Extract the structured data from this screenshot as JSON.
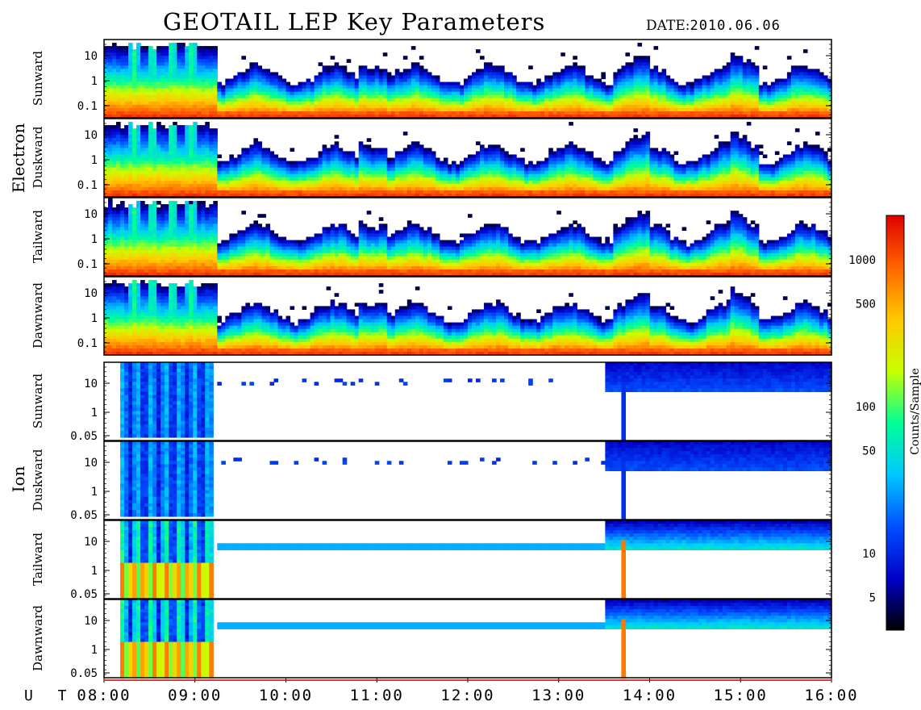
{
  "title": "GEOTAIL LEP Key Parameters",
  "date_label": "DATE:",
  "date_value": "2010.06.06",
  "colors": {
    "colormap": [
      "#000000",
      "#0000c8",
      "#0050ff",
      "#00c8ff",
      "#00ff96",
      "#c8ff00",
      "#ffc800",
      "#ff6400",
      "#e00000"
    ],
    "frame": "#000000"
  },
  "chart_data": {
    "type": "heatmap",
    "description_of_axes": "energy-time spectrogram panels, shared time axis",
    "x": {
      "label": "U T",
      "ticks": [
        "08:00",
        "09:00",
        "10:00",
        "11:00",
        "12:00",
        "13:00",
        "14:00",
        "15:00",
        "16:00"
      ],
      "range": [
        "08:00",
        "16:00"
      ]
    },
    "groups": [
      {
        "name": "Electron",
        "panels": [
          {
            "name": "Sunward",
            "yticks": [
              "10",
              "1",
              "0.1"
            ],
            "log_y": true
          },
          {
            "name": "Duskward",
            "yticks": [
              "10",
              "1",
              "0.1"
            ],
            "log_y": true
          },
          {
            "name": "Tailward",
            "yticks": [
              "10",
              "1",
              "0.1"
            ],
            "log_y": true
          },
          {
            "name": "Dawnward",
            "yticks": [
              "10",
              "1",
              "0.1"
            ],
            "log_y": true
          }
        ]
      },
      {
        "name": "Ion",
        "panels": [
          {
            "name": "Sunward",
            "yticks": [
              "10",
              "1",
              "0.05"
            ],
            "log_y": true
          },
          {
            "name": "Duskward",
            "yticks": [
              "10",
              "1",
              "0.05"
            ],
            "log_y": true
          },
          {
            "name": "Tailward",
            "yticks": [
              "10",
              "1",
              "0.05"
            ],
            "log_y": true
          },
          {
            "name": "Dawnward",
            "yticks": [
              "10",
              "1",
              "0.05"
            ],
            "log_y": true
          }
        ]
      }
    ],
    "colorbar": {
      "label": "Counts/Sample",
      "log_scale": true,
      "range": [
        3,
        2000
      ],
      "ticks": [
        {
          "value": 1000,
          "label": "1000"
        },
        {
          "value": 500,
          "label": "500"
        },
        {
          "value": 100,
          "label": "100"
        },
        {
          "value": 50,
          "label": "50"
        },
        {
          "value": 10,
          "label": "10"
        },
        {
          "value": 5,
          "label": "5"
        }
      ]
    },
    "features": {
      "electron_hot_bursts_UT": [
        "08:20",
        "08:32",
        "08:45",
        "08:58"
      ],
      "ion_data_gap_UT": [
        "09:10",
        "13:30"
      ],
      "ion_spike_UT": "13:43"
    }
  }
}
